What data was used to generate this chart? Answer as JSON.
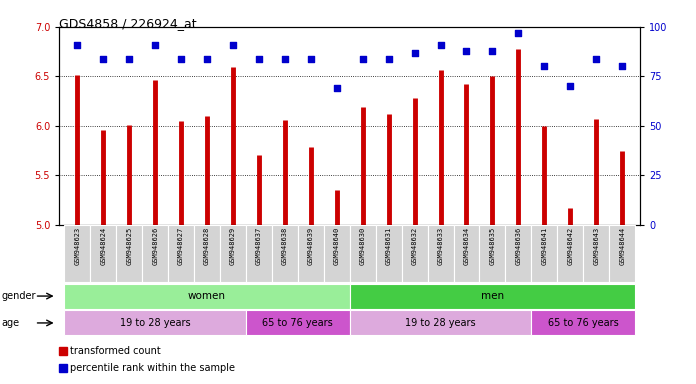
{
  "title": "GDS4858 / 226924_at",
  "samples": [
    "GSM948623",
    "GSM948624",
    "GSM948625",
    "GSM948626",
    "GSM948627",
    "GSM948628",
    "GSM948629",
    "GSM948637",
    "GSM948638",
    "GSM948639",
    "GSM948640",
    "GSM948630",
    "GSM948631",
    "GSM948632",
    "GSM948633",
    "GSM948634",
    "GSM948635",
    "GSM948636",
    "GSM948641",
    "GSM948642",
    "GSM948643",
    "GSM948644"
  ],
  "bar_values": [
    6.51,
    5.96,
    6.01,
    6.46,
    6.05,
    6.1,
    6.59,
    5.7,
    6.06,
    5.79,
    5.35,
    6.19,
    6.12,
    6.28,
    6.56,
    6.42,
    6.5,
    6.78,
    6.0,
    5.17,
    6.07,
    5.74
  ],
  "percentile_values": [
    91,
    84,
    84,
    91,
    84,
    84,
    91,
    84,
    84,
    84,
    69,
    84,
    84,
    87,
    91,
    88,
    88,
    97,
    80,
    70,
    84,
    80
  ],
  "ylim_left": [
    5.0,
    7.0
  ],
  "ylim_right": [
    0,
    100
  ],
  "bar_color": "#cc0000",
  "dot_color": "#0000cc",
  "yticks_left": [
    5.0,
    5.5,
    6.0,
    6.5,
    7.0
  ],
  "yticks_right": [
    0,
    25,
    50,
    75,
    100
  ],
  "gender_sections": [
    {
      "label": "women",
      "start": 0,
      "end": 11,
      "color": "#99ee99"
    },
    {
      "label": "men",
      "start": 11,
      "end": 22,
      "color": "#44cc44"
    }
  ],
  "age_sections": [
    {
      "label": "19 to 28 years",
      "start": 0,
      "end": 7,
      "color": "#ddaadd"
    },
    {
      "label": "65 to 76 years",
      "start": 7,
      "end": 11,
      "color": "#cc55cc"
    },
    {
      "label": "19 to 28 years",
      "start": 11,
      "end": 18,
      "color": "#ddaadd"
    },
    {
      "label": "65 to 76 years",
      "start": 18,
      "end": 22,
      "color": "#cc55cc"
    }
  ],
  "legend_bar_label": "transformed count",
  "legend_dot_label": "percentile rank within the sample",
  "bg_color": "#ffffff",
  "plot_bg_color": "#ffffff"
}
